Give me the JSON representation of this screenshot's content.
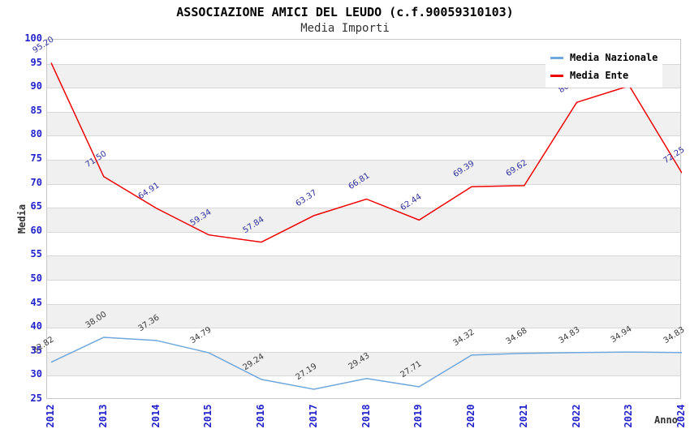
{
  "title": "ASSOCIAZIONE AMICI DEL LEUDO (c.f.90059310103)",
  "subtitle": "Media Importi",
  "axis": {
    "y_title": "Media",
    "x_title": "Anno"
  },
  "colors": {
    "tick_label": "#2222CC",
    "grid": "#D8D8D8",
    "band": "#F0F0F0",
    "plot_border": "#C8C8C8",
    "legend_bg": "#FFFFFF"
  },
  "chart_data": {
    "type": "line",
    "title": "ASSOCIAZIONE AMICI DEL LEUDO (c.f.90059310103)",
    "subtitle": "Media Importi",
    "xlabel": "Anno",
    "ylabel": "Media",
    "x": [
      "2012",
      "2013",
      "2014",
      "2015",
      "2016",
      "2017",
      "2018",
      "2019",
      "2020",
      "2021",
      "2022",
      "2023",
      "2024"
    ],
    "ylim": [
      25,
      100
    ],
    "ytick_step": 5,
    "grid": true,
    "band_fill": "alternating",
    "legend_position": "top-right-inside",
    "series": [
      {
        "name": "Media Nazionale",
        "color": "#6FA8DC",
        "label_color": "#3A3A3A",
        "values": [
          32.82,
          38.0,
          37.36,
          34.79,
          29.24,
          27.19,
          29.43,
          27.71,
          34.32,
          34.68,
          34.83,
          34.94,
          34.83
        ],
        "point_labels": [
          "32.82",
          "38.00",
          "37.36",
          "34.79",
          "29.24",
          "27.19",
          "29.43",
          "27.71",
          "34.32",
          "34.68",
          "34.83",
          "34.94",
          "34.83"
        ]
      },
      {
        "name": "Media Ente",
        "color": "#EE0000",
        "label_color": "#31319E",
        "values": [
          95.2,
          71.5,
          64.91,
          59.34,
          57.84,
          63.37,
          66.81,
          62.44,
          69.39,
          69.62,
          86.96,
          90.4,
          72.25
        ],
        "point_labels": [
          "95.20",
          "71.50",
          "64.91",
          "59.34",
          "57.84",
          "63.37",
          "66.81",
          "62.44",
          "69.39",
          "69.62",
          "86.96",
          null,
          "72.25"
        ],
        "note": "2023 value estimated from plot; its label is hidden behind the legend box"
      }
    ]
  }
}
